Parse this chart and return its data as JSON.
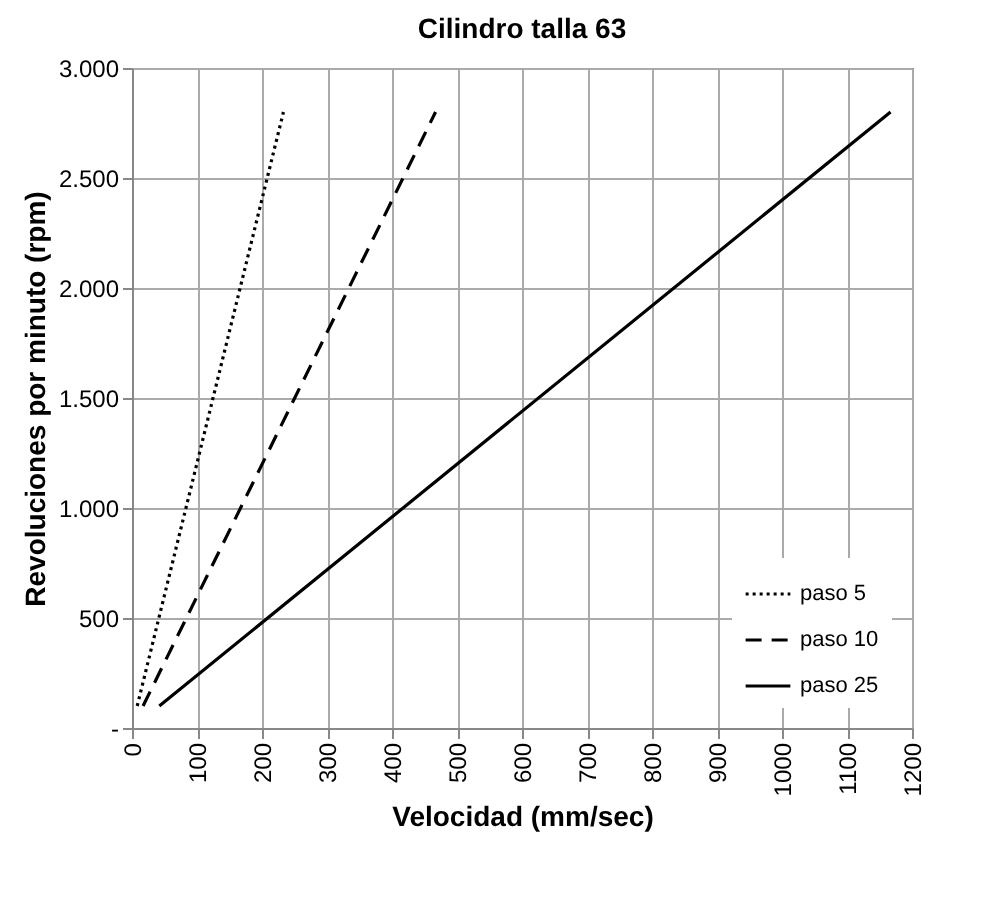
{
  "chart_data": {
    "type": "line",
    "title": "Cilindro talla 63",
    "xlabel": "Velocidad (mm/sec)",
    "ylabel": "Revoluciones por minuto (rpm)",
    "xlim": [
      0,
      1200
    ],
    "xticks": [
      0,
      100,
      200,
      300,
      400,
      500,
      600,
      700,
      800,
      900,
      1000,
      1100,
      1200
    ],
    "ylim": [
      0,
      3000
    ],
    "yticks": [
      {
        "value": 0,
        "label": "-"
      },
      500,
      {
        "value": 1000,
        "label": "1.000"
      },
      {
        "value": 1500,
        "label": "1.500"
      },
      {
        "value": 2000,
        "label": "2.000"
      },
      {
        "value": 2500,
        "label": "2.500"
      },
      {
        "value": 3000,
        "label": "3.000"
      }
    ],
    "grid": true,
    "legend": "bottom right",
    "series": [
      {
        "name": "paso 5",
        "color": "#000000",
        "line_style": "dotted",
        "x": [
          8,
          233
        ],
        "values": [
          100,
          2800
        ]
      },
      {
        "name": "paso 10",
        "color": "#000000",
        "line_style": "dashed",
        "x": [
          17,
          467
        ],
        "values": [
          100,
          2800
        ]
      },
      {
        "name": "paso 25",
        "color": "#000000",
        "line_style": "solid",
        "x": [
          42,
          1167
        ],
        "values": [
          100,
          2800
        ]
      }
    ]
  }
}
